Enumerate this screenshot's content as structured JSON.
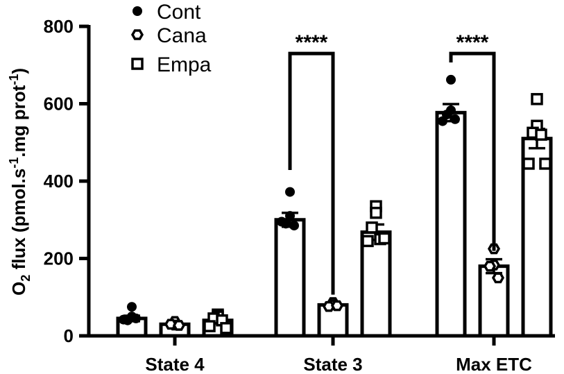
{
  "chart_data": {
    "type": "bar",
    "categories": [
      "State 4",
      "State 3",
      "Max ETC"
    ],
    "ylabel": {
      "prefix": "O",
      "prefix_sub": "2",
      "main": " flux (pmol.s",
      "sup1": "-1",
      "mid": ".mg prot",
      "sup2": "-1",
      "end": ")"
    },
    "ylim": [
      0,
      800
    ],
    "yticks": [
      0,
      200,
      400,
      600,
      800
    ],
    "grid": false,
    "legend_position": "top-left",
    "series": [
      {
        "name": "Cont",
        "marker": "filled-circle",
        "values": [
          45,
          300,
          577
        ],
        "sem": [
          7,
          18,
          22
        ],
        "points": [
          [
            75,
            50,
            40,
            45,
            42
          ],
          [
            372,
            310,
            290,
            285,
            295
          ],
          [
            662,
            583,
            572,
            560,
            555
          ]
        ]
      },
      {
        "name": "Cana",
        "marker": "open-hexagon",
        "values": [
          30,
          80,
          180
        ],
        "sem": [
          4,
          5,
          18
        ],
        "points": [
          [
            37,
            28,
            30,
            27
          ],
          [
            86,
            80,
            76,
            78
          ],
          [
            225,
            183,
            180,
            150
          ]
        ]
      },
      {
        "name": "Empa",
        "marker": "open-square",
        "values": [
          40,
          268,
          510
        ],
        "sem": [
          8,
          20,
          25
        ],
        "points": [
          [
            55,
            50,
            45,
            40,
            25,
            20
          ],
          [
            335,
            318,
            280,
            250,
            245,
            252
          ],
          [
            612,
            543,
            525,
            520,
            445,
            445
          ]
        ]
      }
    ],
    "significance": [
      {
        "category": "State 3",
        "from": "Cont",
        "to": "Cana",
        "label": "****",
        "level": 755
      },
      {
        "category": "Max ETC",
        "from": "Cont",
        "to": "Cana",
        "label": "****",
        "level": 755
      }
    ]
  }
}
